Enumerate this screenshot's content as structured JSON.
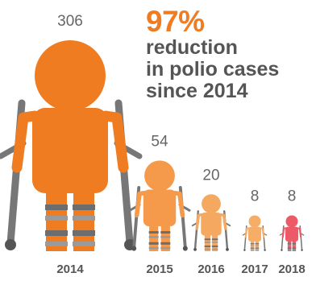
{
  "headline": {
    "percent": "97%",
    "lines": [
      "reduction",
      "in polio cases",
      "since 2014"
    ]
  },
  "colors": {
    "accent": "#f07c22",
    "figure_2014": "#f07c22",
    "figure_2015": "#f5994a",
    "figure_2016": "#f5a85f",
    "figure_2017": "#f5ad68",
    "figure_2018": "#ec5a68",
    "highlight_2018": "#ec5a68",
    "text": "#555555",
    "crutch": "#777777"
  },
  "chart_data": {
    "type": "pictogram",
    "title": "",
    "categories": [
      "2014",
      "2015",
      "2016",
      "2017",
      "2018"
    ],
    "values": [
      306,
      54,
      20,
      8,
      8
    ],
    "value_labels": [
      "306",
      "54",
      "20",
      "8",
      "8"
    ],
    "highlight_category": "2018",
    "xlabel": "",
    "ylabel": ""
  }
}
